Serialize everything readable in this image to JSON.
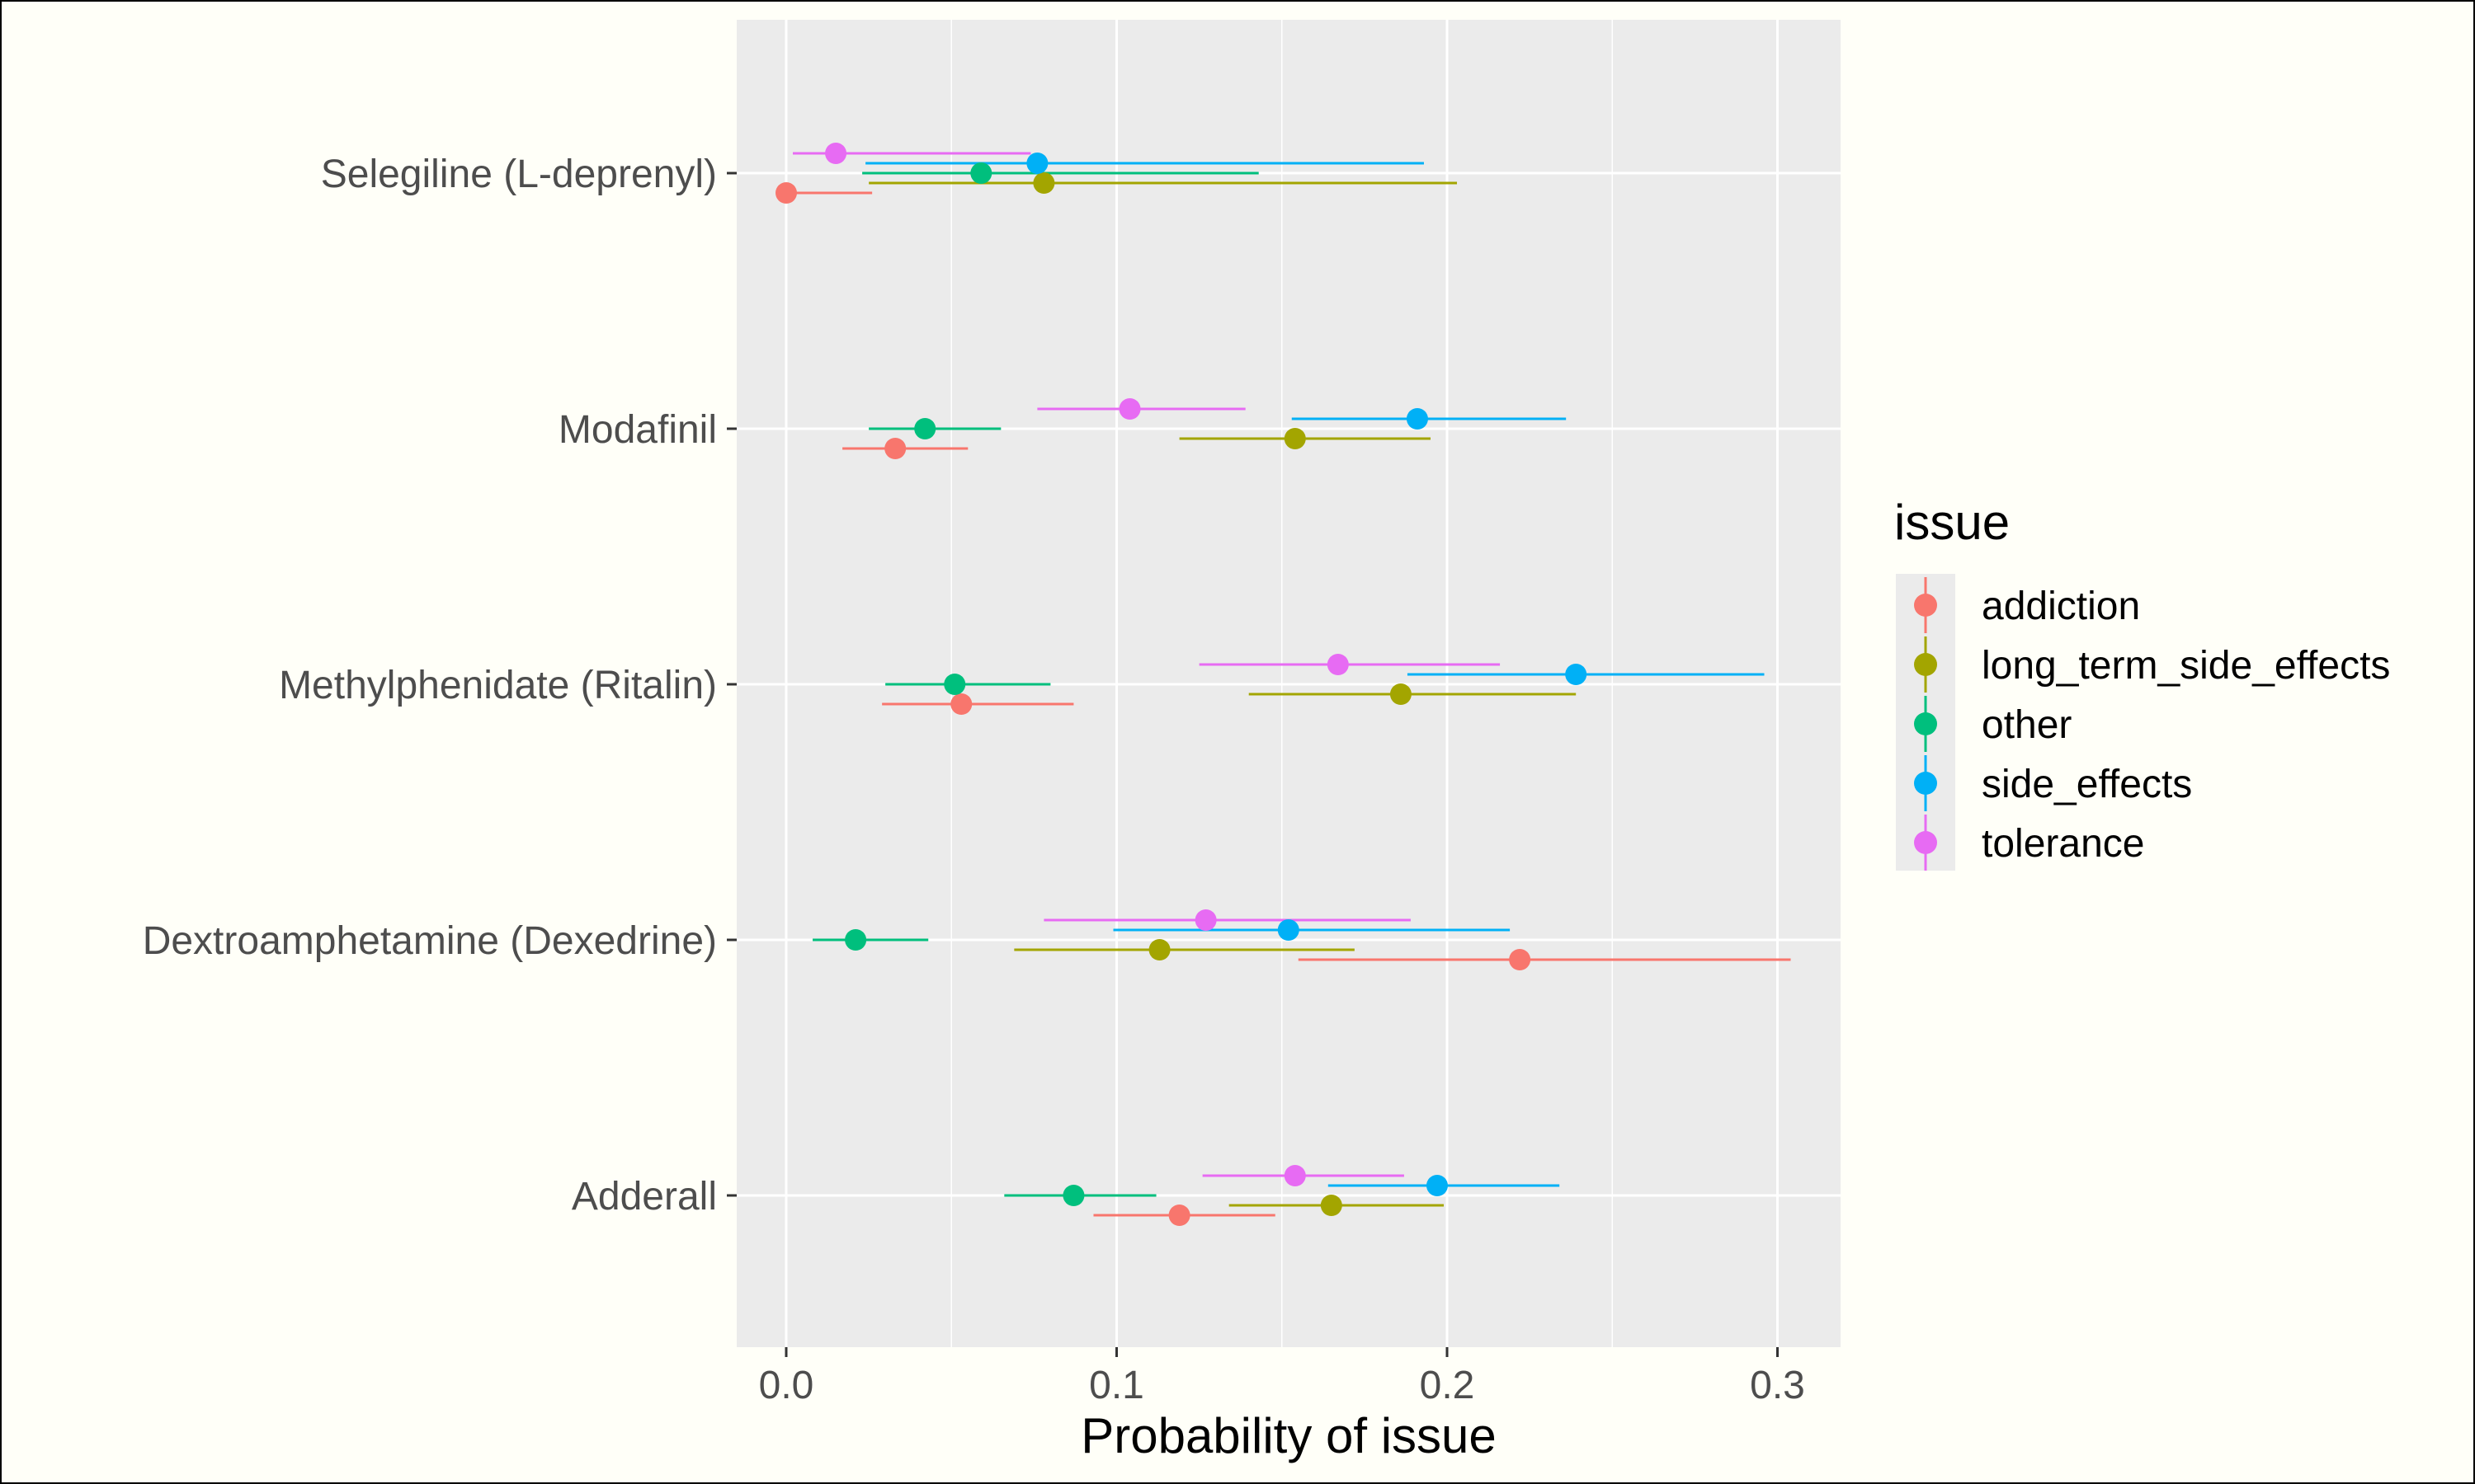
{
  "chart_data": {
    "type": "scatter",
    "orientation": "horizontal",
    "xlabel": "Probability of issue",
    "ylabel": "",
    "xlim": [
      -0.015,
      0.32
    ],
    "xticks": [
      0.0,
      0.1,
      0.2,
      0.3
    ],
    "xtick_labels": [
      "0.0",
      "0.1",
      "0.2",
      "0.3"
    ],
    "grid": true,
    "legend_title": "issue",
    "legend_position": "right",
    "categories": [
      "Selegiline (L-deprenyl)",
      "Modafinil",
      "Methylphenidate (Ritalin)",
      "Dextroamphetamine (Dexedrine)",
      "Adderall"
    ],
    "series": [
      {
        "name": "addiction",
        "color": "#F8766D",
        "points": [
          {
            "category": "Selegiline (L-deprenyl)",
            "value": 0.0,
            "low": 0.0,
            "high": 0.026
          },
          {
            "category": "Modafinil",
            "value": 0.033,
            "low": 0.017,
            "high": 0.055
          },
          {
            "category": "Methylphenidate (Ritalin)",
            "value": 0.053,
            "low": 0.029,
            "high": 0.087
          },
          {
            "category": "Dextroamphetamine (Dexedrine)",
            "value": 0.222,
            "low": 0.155,
            "high": 0.304
          },
          {
            "category": "Adderall",
            "value": 0.119,
            "low": 0.093,
            "high": 0.148
          }
        ]
      },
      {
        "name": "long_term_side_effects",
        "color": "#A3A500",
        "points": [
          {
            "category": "Selegiline (L-deprenyl)",
            "value": 0.078,
            "low": 0.025,
            "high": 0.203
          },
          {
            "category": "Modafinil",
            "value": 0.154,
            "low": 0.119,
            "high": 0.195
          },
          {
            "category": "Methylphenidate (Ritalin)",
            "value": 0.186,
            "low": 0.14,
            "high": 0.239
          },
          {
            "category": "Dextroamphetamine (Dexedrine)",
            "value": 0.113,
            "low": 0.069,
            "high": 0.172
          },
          {
            "category": "Adderall",
            "value": 0.165,
            "low": 0.134,
            "high": 0.199
          }
        ]
      },
      {
        "name": "other",
        "color": "#00BF7D",
        "points": [
          {
            "category": "Selegiline (L-deprenyl)",
            "value": 0.059,
            "low": 0.023,
            "high": 0.143
          },
          {
            "category": "Modafinil",
            "value": 0.042,
            "low": 0.025,
            "high": 0.065
          },
          {
            "category": "Methylphenidate (Ritalin)",
            "value": 0.051,
            "low": 0.03,
            "high": 0.08
          },
          {
            "category": "Dextroamphetamine (Dexedrine)",
            "value": 0.021,
            "low": 0.008,
            "high": 0.043
          },
          {
            "category": "Adderall",
            "value": 0.087,
            "low": 0.066,
            "high": 0.112
          }
        ]
      },
      {
        "name": "side_effects",
        "color": "#00B0F6",
        "points": [
          {
            "category": "Selegiline (L-deprenyl)",
            "value": 0.076,
            "low": 0.024,
            "high": 0.193
          },
          {
            "category": "Modafinil",
            "value": 0.191,
            "low": 0.153,
            "high": 0.236
          },
          {
            "category": "Methylphenidate (Ritalin)",
            "value": 0.239,
            "low": 0.188,
            "high": 0.296
          },
          {
            "category": "Dextroamphetamine (Dexedrine)",
            "value": 0.152,
            "low": 0.099,
            "high": 0.219
          },
          {
            "category": "Adderall",
            "value": 0.197,
            "low": 0.164,
            "high": 0.234
          }
        ]
      },
      {
        "name": "tolerance",
        "color": "#E76BF3",
        "points": [
          {
            "category": "Selegiline (L-deprenyl)",
            "value": 0.015,
            "low": 0.002,
            "high": 0.074
          },
          {
            "category": "Modafinil",
            "value": 0.104,
            "low": 0.076,
            "high": 0.139
          },
          {
            "category": "Methylphenidate (Ritalin)",
            "value": 0.167,
            "low": 0.125,
            "high": 0.216
          },
          {
            "category": "Dextroamphetamine (Dexedrine)",
            "value": 0.127,
            "low": 0.078,
            "high": 0.189
          },
          {
            "category": "Adderall",
            "value": 0.154,
            "low": 0.126,
            "high": 0.187
          }
        ]
      }
    ]
  }
}
